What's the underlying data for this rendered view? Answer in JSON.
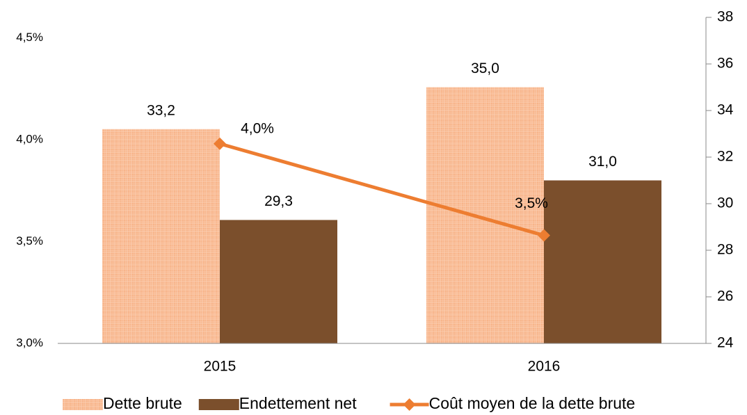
{
  "chart_data": {
    "type": "bar",
    "categories": [
      "2015",
      "2016"
    ],
    "series": [
      {
        "name": "Dette brute",
        "type": "bar",
        "axis": "y2",
        "color": "#f8b48a",
        "values": [
          33.2,
          35.0
        ],
        "value_labels": [
          "33,2",
          "35,0"
        ]
      },
      {
        "name": "Endettement net",
        "type": "bar",
        "axis": "y2",
        "color": "#7b4f2c",
        "values": [
          29.3,
          31.0
        ],
        "value_labels": [
          "29,3",
          "31,0"
        ]
      },
      {
        "name": "Coût moyen de la dette brute",
        "type": "line",
        "axis": "y",
        "color": "#ed7d31",
        "values": [
          3.98,
          3.53
        ],
        "value_labels": [
          "4,0%",
          "3,5%"
        ]
      }
    ],
    "ylim": [
      3.0,
      4.6
    ],
    "yticks": [
      {
        "value": 3.0,
        "label": "3,0%"
      },
      {
        "value": 3.5,
        "label": "3,5%"
      },
      {
        "value": 4.0,
        "label": "4,0%"
      },
      {
        "value": 4.5,
        "label": "4,5%"
      }
    ],
    "y2lim": [
      24,
      38
    ],
    "y2ticks": [
      24,
      26,
      28,
      30,
      32,
      34,
      36,
      38
    ],
    "legend": "bottom"
  }
}
